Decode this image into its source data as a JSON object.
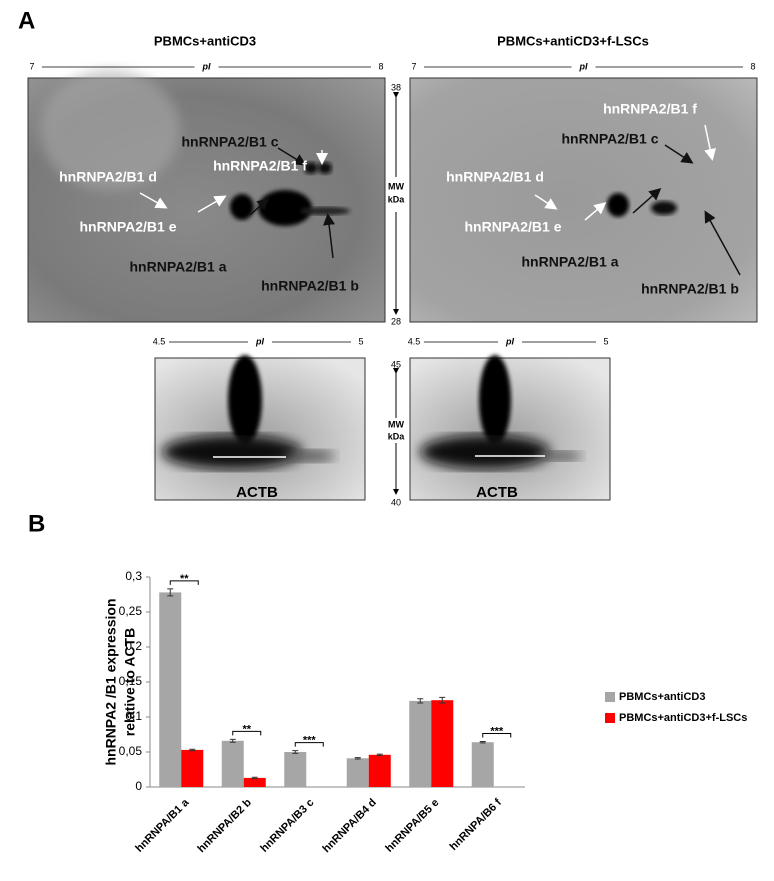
{
  "panel_a": {
    "label": "A",
    "gels": [
      {
        "title": "PBMCs+antiCD3",
        "pi_axis": {
          "start": 7,
          "label": "pI",
          "end": 8
        },
        "spots": [
          {
            "text": "hnRNPA2/B1 f",
            "color": "#ffffff"
          },
          {
            "text": "hnRNPA2/B1 c",
            "color": "#111111"
          },
          {
            "text": "hnRNPA2/B1 d",
            "color": "#ffffff"
          },
          {
            "text": "hnRNPA2/B1 e",
            "color": "#ffffff"
          },
          {
            "text": "hnRNPA2/B1 a",
            "color": "#111111"
          },
          {
            "text": "hnRNPA2/B1 b",
            "color": "#111111"
          }
        ],
        "actb": {
          "pi_axis": {
            "start": 4.5,
            "label": "pI",
            "end": 5
          },
          "label": "ACTB"
        }
      },
      {
        "title": "PBMCs+antiCD3+f-LSCs",
        "pi_axis": {
          "start": 7,
          "label": "pI",
          "end": 8
        },
        "spots": [
          {
            "text": "hnRNPA2/B1 f",
            "color": "#ffffff"
          },
          {
            "text": "hnRNPA2/B1 c",
            "color": "#111111"
          },
          {
            "text": "hnRNPA2/B1 d",
            "color": "#ffffff"
          },
          {
            "text": "hnRNPA2/B1 e",
            "color": "#ffffff"
          },
          {
            "text": "hnRNPA2/B1 a",
            "color": "#111111"
          },
          {
            "text": "hnRNPA2/B1 b",
            "color": "#111111"
          }
        ],
        "actb": {
          "pi_axis": {
            "start": 4.5,
            "label": "pI",
            "end": 5
          },
          "label": "ACTB"
        }
      }
    ],
    "mw_main": {
      "top": 38,
      "label": [
        "MW",
        "kDa"
      ],
      "bottom": 28
    },
    "mw_actb": {
      "top": 45,
      "label": [
        "MW",
        "kDa"
      ],
      "bottom": 40
    }
  },
  "panel_b_label": "B",
  "chart_data": {
    "type": "bar",
    "ylabel": [
      "hnRNPA2 /B1  expression",
      "relative to ACTB"
    ],
    "categories": [
      "hnRNPA/B1 a",
      "hnRNPA/B2 b",
      "hnRNPA/B3 c",
      "hnRNPA/B4 d",
      "hnRNPA/B5 e",
      "hnRNPA/B6 f"
    ],
    "series": [
      {
        "name": "PBMCs+antiCD3",
        "color": "#a6a6a6",
        "values": [
          0.278,
          0.066,
          0.05,
          0.041,
          0.123,
          0.064
        ],
        "errors": [
          0.005,
          0.002,
          0.002,
          0.001,
          0.003,
          0.001
        ]
      },
      {
        "name": "PBMCs+antiCD3+f-LSCs",
        "color": "#ff0000",
        "values": [
          0.053,
          0.013,
          null,
          0.046,
          0.124,
          null
        ],
        "errors": [
          0.001,
          0.001,
          null,
          0.001,
          0.004,
          null
        ]
      }
    ],
    "significance": [
      "**",
      "**",
      "***",
      null,
      null,
      "***"
    ],
    "ylim": [
      0,
      0.3
    ],
    "yticks": [
      0,
      {
        "value": 0.05,
        "label": "0,05"
      },
      {
        "value": 0.1,
        "label": "0,1"
      },
      {
        "value": 0.15,
        "label": "0,15"
      },
      {
        "value": 0.2,
        "label": "0,2"
      },
      {
        "value": 0.25,
        "label": "0,25"
      },
      {
        "value": 0.3,
        "label": "0,3"
      }
    ],
    "legend": "right"
  }
}
